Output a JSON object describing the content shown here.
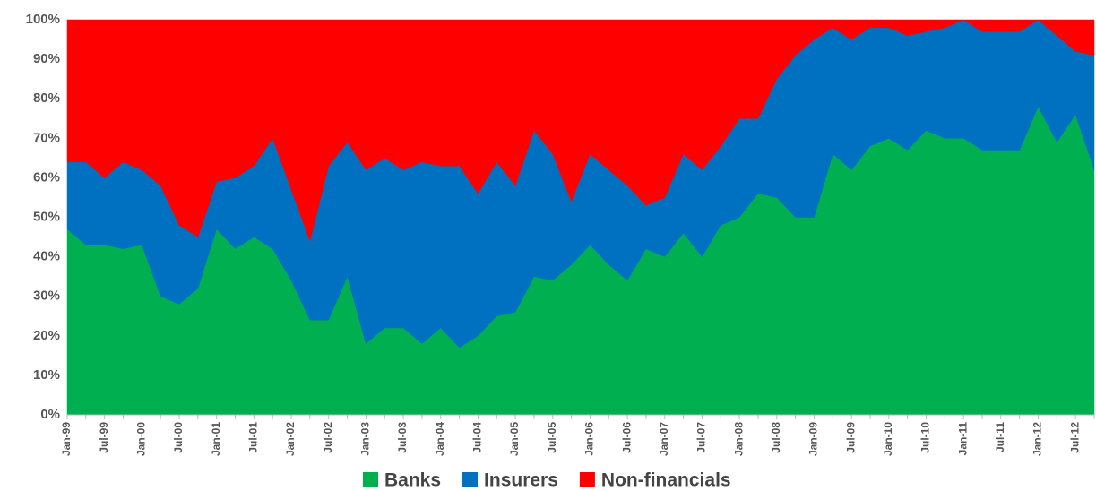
{
  "chart_data": {
    "type": "stacked_area",
    "categories": [
      "Jan-99",
      null,
      "Jul-99",
      null,
      "Jan-00",
      null,
      "Jul-00",
      null,
      "Jan-01",
      null,
      "Jul-01",
      null,
      "Jan-02",
      null,
      "Jul-02",
      null,
      "Jan-03",
      null,
      "Jul-03",
      null,
      "Jan-04",
      null,
      "Jul-04",
      null,
      "Jan-05",
      null,
      "Jul-05",
      null,
      "Jan-06",
      null,
      "Jul-06",
      null,
      "Jan-07",
      null,
      "Jul-07",
      null,
      "Jan-08",
      null,
      "Jul-08",
      null,
      "Jan-09",
      null,
      "Jul-09",
      null,
      "Jan-10",
      null,
      "Jul-10",
      null,
      "Jan-11",
      null,
      "Jul-11",
      null,
      "Jan-12",
      null,
      "Jul-12",
      null
    ],
    "series": [
      {
        "name": "Banks",
        "color": "#00b050",
        "values": [
          47,
          43,
          43,
          42,
          43,
          30,
          28,
          32,
          47,
          42,
          45,
          42,
          34,
          24,
          24,
          35,
          18,
          22,
          22,
          18,
          22,
          17,
          20,
          25,
          26,
          35,
          34,
          38,
          43,
          38,
          34,
          42,
          40,
          46,
          40,
          48,
          50,
          56,
          55,
          50,
          50,
          66,
          62,
          68,
          70,
          67,
          72,
          70,
          70,
          67,
          67,
          67,
          78,
          69,
          76,
          62
        ]
      },
      {
        "name": "Insurers",
        "color": "#0070c0",
        "values": [
          17,
          21,
          17,
          22,
          19,
          28,
          20,
          13,
          12,
          18,
          18,
          28,
          23,
          20,
          39,
          34,
          44,
          43,
          40,
          46,
          41,
          46,
          36,
          39,
          32,
          37,
          32,
          16,
          23,
          24,
          24,
          11,
          15,
          20,
          22,
          20,
          25,
          19,
          30,
          41,
          45,
          32,
          33,
          30,
          28,
          29,
          25,
          28,
          30,
          30,
          30,
          30,
          22,
          27,
          16,
          29
        ]
      },
      {
        "name": "Non-financials",
        "color": "#ff0000",
        "values": [
          36,
          36,
          40,
          36,
          38,
          42,
          52,
          55,
          41,
          40,
          37,
          30,
          43,
          56,
          37,
          31,
          38,
          35,
          38,
          36,
          37,
          37,
          44,
          36,
          42,
          28,
          34,
          46,
          34,
          38,
          42,
          47,
          45,
          34,
          38,
          32,
          25,
          25,
          15,
          9,
          5,
          2,
          5,
          2,
          2,
          4,
          3,
          2,
          0,
          3,
          3,
          3,
          0,
          4,
          8,
          9
        ]
      }
    ],
    "ylim": [
      0,
      100
    ],
    "yticks": [
      {
        "value": 0,
        "label": "0%"
      },
      {
        "value": 10,
        "label": "10%"
      },
      {
        "value": 20,
        "label": "20%"
      },
      {
        "value": 30,
        "label": "30%"
      },
      {
        "value": 40,
        "label": "40%"
      },
      {
        "value": 50,
        "label": "50%"
      },
      {
        "value": 60,
        "label": "60%"
      },
      {
        "value": 70,
        "label": "70%"
      },
      {
        "value": 80,
        "label": "80%"
      },
      {
        "value": 90,
        "label": "90%"
      },
      {
        "value": 100,
        "label": "100%"
      }
    ],
    "legend": "bottom"
  }
}
